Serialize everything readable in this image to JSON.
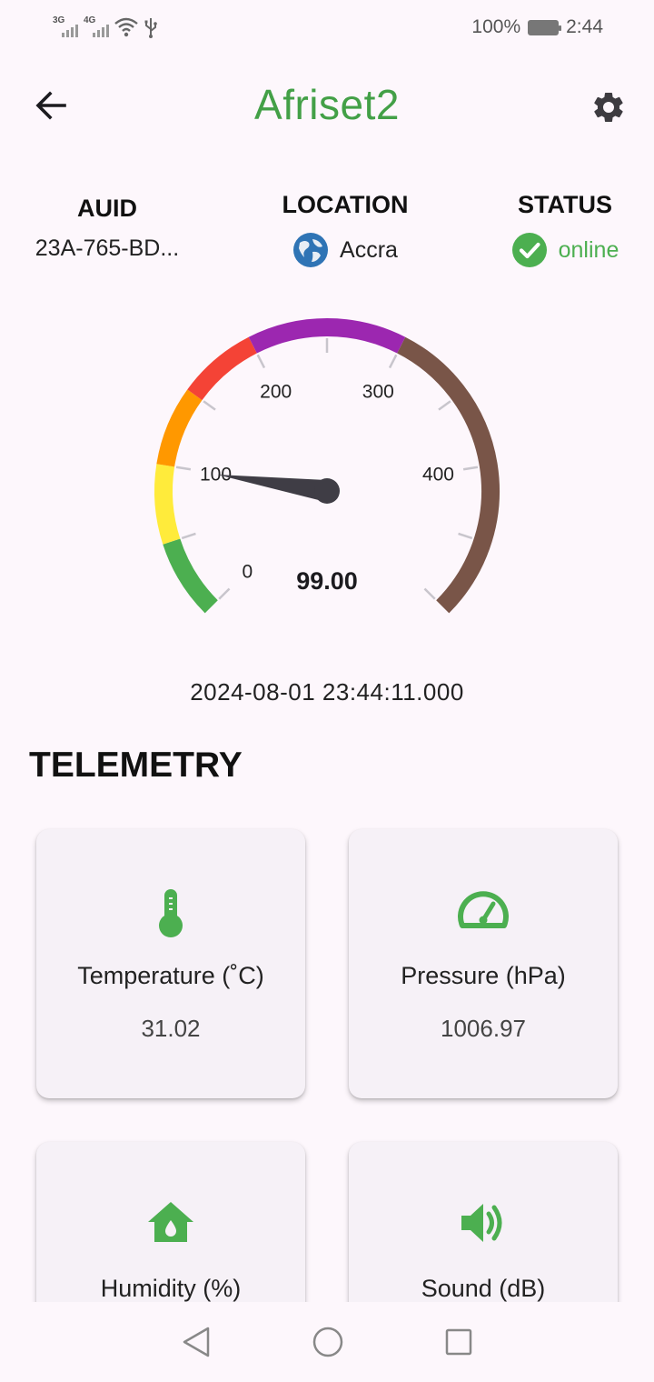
{
  "status_bar": {
    "net1": "3G",
    "net2": "4G",
    "battery_percent": "100%",
    "time": "2:44"
  },
  "app_bar": {
    "title": "Afriset2",
    "back_icon": "arrow-left-icon",
    "settings_icon": "gear-icon"
  },
  "info": {
    "auid_label": "AUID",
    "auid_value": "23A-765-BD...",
    "location_label": "LOCATION",
    "location_value": "Accra",
    "status_label": "STATUS",
    "status_value": "online"
  },
  "gauge": {
    "value": 99.0,
    "value_text": "99.00",
    "min": 0,
    "max": 500,
    "tick_labels": [
      "0",
      "100",
      "200",
      "300",
      "400"
    ],
    "bands": [
      {
        "from": 0,
        "to": 50,
        "color": "#4caf50"
      },
      {
        "from": 50,
        "to": 100,
        "color": "#ffeb3b"
      },
      {
        "from": 100,
        "to": 150,
        "color": "#ff9800"
      },
      {
        "from": 150,
        "to": 200,
        "color": "#f44336"
      },
      {
        "from": 200,
        "to": 300,
        "color": "#9c27b0"
      },
      {
        "from": 300,
        "to": 500,
        "color": "#795548"
      }
    ],
    "timestamp": "2024-08-01 23:44:11.000"
  },
  "telemetry": {
    "title": "TELEMETRY",
    "cards": [
      {
        "label": "Temperature (˚C)",
        "value": "31.02",
        "icon": "thermometer-icon"
      },
      {
        "label": "Pressure (hPa)",
        "value": "1006.97",
        "icon": "speedometer-icon"
      },
      {
        "label": "Humidity (%)",
        "value": "",
        "icon": "home-humidity-icon"
      },
      {
        "label": "Sound (dB)",
        "value": "",
        "icon": "volume-icon"
      }
    ]
  },
  "colors": {
    "accent": "#43a047",
    "background": "#fdf7fc",
    "card": "#f6f1f7"
  }
}
